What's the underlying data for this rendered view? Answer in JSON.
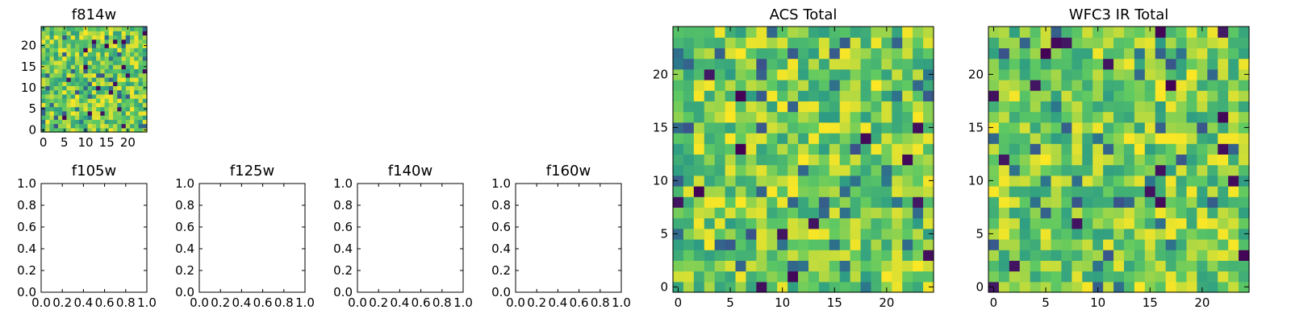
{
  "chart_data": [
    {
      "id": "f814w",
      "type": "heatmap",
      "title": "f814w",
      "colormap": "viridis",
      "grid_size": 25,
      "xlim": [
        -0.5,
        24.5
      ],
      "ylim": [
        -0.5,
        24.5
      ],
      "xticks": [
        0,
        5,
        10,
        15,
        20
      ],
      "yticks": [
        0,
        5,
        10,
        15,
        20
      ],
      "xtick_labels": [
        "0",
        "5",
        "10",
        "15",
        "20"
      ],
      "ytick_labels": [
        "0",
        "5",
        "10",
        "15",
        "20"
      ],
      "value_range": [
        0,
        1
      ],
      "seed": 814
    },
    {
      "id": "f105w",
      "type": "empty",
      "title": "f105w",
      "xlim": [
        0,
        1
      ],
      "ylim": [
        0,
        1
      ],
      "xtick_labels": [
        "0.0",
        "0.2",
        "0.4",
        "0.6",
        "0.8",
        "1.0"
      ],
      "ytick_labels": [
        "0.0",
        "0.2",
        "0.4",
        "0.6",
        "0.8",
        "1.0"
      ]
    },
    {
      "id": "f125w",
      "type": "empty",
      "title": "f125w",
      "xlim": [
        0,
        1
      ],
      "ylim": [
        0,
        1
      ],
      "xtick_labels": [
        "0.0",
        "0.2",
        "0.4",
        "0.6",
        "0.8",
        "1.0"
      ],
      "ytick_labels": [
        "0.0",
        "0.2",
        "0.4",
        "0.6",
        "0.8",
        "1.0"
      ]
    },
    {
      "id": "f140w",
      "type": "empty",
      "title": "f140w",
      "xlim": [
        0,
        1
      ],
      "ylim": [
        0,
        1
      ],
      "xtick_labels": [
        "0.0",
        "0.2",
        "0.4",
        "0.6",
        "0.8",
        "1.0"
      ],
      "ytick_labels": [
        "0.0",
        "0.2",
        "0.4",
        "0.6",
        "0.8",
        "1.0"
      ]
    },
    {
      "id": "f160w",
      "type": "empty",
      "title": "f160w",
      "xlim": [
        0,
        1
      ],
      "ylim": [
        0,
        1
      ],
      "xtick_labels": [
        "0.0",
        "0.2",
        "0.4",
        "0.6",
        "0.8",
        "1.0"
      ],
      "ytick_labels": [
        "0.0",
        "0.2",
        "0.4",
        "0.6",
        "0.8",
        "1.0"
      ]
    },
    {
      "id": "acs_total",
      "type": "heatmap",
      "title": "ACS Total",
      "colormap": "viridis",
      "grid_size": 25,
      "xlim": [
        -0.5,
        24.5
      ],
      "ylim": [
        -0.5,
        24.5
      ],
      "xticks": [
        0,
        5,
        10,
        15,
        20
      ],
      "yticks": [
        0,
        5,
        10,
        15,
        20
      ],
      "xtick_labels": [
        "0",
        "5",
        "10",
        "15",
        "20"
      ],
      "ytick_labels": [
        "0",
        "5",
        "10",
        "15",
        "20"
      ],
      "value_range": [
        0,
        1
      ],
      "seed": 1001
    },
    {
      "id": "wfc3_ir_total",
      "type": "heatmap",
      "title": "WFC3 IR Total",
      "colormap": "viridis",
      "grid_size": 25,
      "xlim": [
        -0.5,
        24.5
      ],
      "ylim": [
        -0.5,
        24.5
      ],
      "xticks": [
        0,
        5,
        10,
        15,
        20
      ],
      "yticks": [
        0,
        5,
        10,
        15,
        20
      ],
      "xtick_labels": [
        "0",
        "5",
        "10",
        "15",
        "20"
      ],
      "ytick_labels": [
        "0",
        "5",
        "10",
        "15",
        "20"
      ],
      "value_range": [
        0,
        1
      ],
      "seed": 2002
    }
  ],
  "colors": {
    "viridis": [
      "#440154",
      "#3b528b",
      "#21918c",
      "#5ec962",
      "#fde725"
    ],
    "frame": "#000000",
    "background": "#ffffff"
  }
}
